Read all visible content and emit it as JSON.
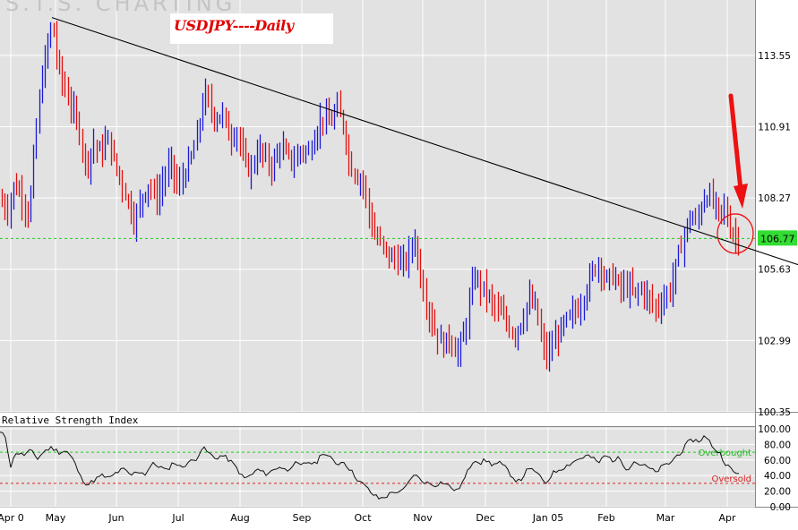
{
  "watermark": "S.T.S. CHARTING",
  "chart_data": [
    {
      "type": "ohlc",
      "title": "USDJPY----Daily",
      "x_tick_labels": [
        "Apr 0",
        "May",
        "Jun",
        "Jul",
        "Aug",
        "Sep",
        "Oct",
        "Nov",
        "Dec",
        "Jan 05",
        "Feb",
        "Mar",
        "Apr"
      ],
      "y_ticks": [
        100.35,
        102.99,
        105.63,
        108.27,
        110.91,
        113.55
      ],
      "ylim": [
        100.35,
        115.6
      ],
      "current_price_label": "106.77",
      "support_line": 106.77,
      "trendline": {
        "from": {
          "x": 58,
          "y": 114.95
        },
        "to": {
          "x": 891,
          "y": 105.8
        }
      },
      "annotation": "red arrow and circle at the trendline break near 106.8 in April",
      "close_waypoints": [
        [
          0,
          108.2
        ],
        [
          8,
          107.8
        ],
        [
          16,
          108.8
        ],
        [
          24,
          108.3
        ],
        [
          32,
          107.6
        ],
        [
          40,
          110.8
        ],
        [
          46,
          112.6
        ],
        [
          52,
          113.8
        ],
        [
          58,
          114.8
        ],
        [
          64,
          113.2
        ],
        [
          72,
          112.3
        ],
        [
          80,
          111.6
        ],
        [
          88,
          110.8
        ],
        [
          96,
          109.4
        ],
        [
          104,
          110.3
        ],
        [
          112,
          109.9
        ],
        [
          120,
          110.5
        ],
        [
          128,
          109.5
        ],
        [
          136,
          108.8
        ],
        [
          144,
          108.0
        ],
        [
          150,
          107.4
        ],
        [
          158,
          108.3
        ],
        [
          166,
          108.8
        ],
        [
          174,
          108.2
        ],
        [
          182,
          108.9
        ],
        [
          190,
          109.6
        ],
        [
          198,
          108.6
        ],
        [
          206,
          109.2
        ],
        [
          214,
          109.8
        ],
        [
          222,
          110.9
        ],
        [
          228,
          112.2
        ],
        [
          234,
          111.6
        ],
        [
          240,
          111.2
        ],
        [
          248,
          111.4
        ],
        [
          256,
          110.5
        ],
        [
          264,
          110.8
        ],
        [
          272,
          109.6
        ],
        [
          280,
          109.3
        ],
        [
          288,
          110.1
        ],
        [
          296,
          109.7
        ],
        [
          304,
          109.4
        ],
        [
          312,
          110.2
        ],
        [
          320,
          109.8
        ],
        [
          328,
          109.6
        ],
        [
          336,
          110.1
        ],
        [
          344,
          109.9
        ],
        [
          352,
          110.7
        ],
        [
          360,
          111.3
        ],
        [
          368,
          111.0
        ],
        [
          376,
          111.6
        ],
        [
          384,
          110.9
        ],
        [
          390,
          109.5
        ],
        [
          398,
          109.1
        ],
        [
          406,
          108.8
        ],
        [
          412,
          107.6
        ],
        [
          418,
          106.9
        ],
        [
          426,
          106.5
        ],
        [
          434,
          106.1
        ],
        [
          442,
          106.0
        ],
        [
          450,
          105.8
        ],
        [
          458,
          106.3
        ],
        [
          462,
          106.9
        ],
        [
          466,
          106.0
        ],
        [
          472,
          104.9
        ],
        [
          478,
          104.1
        ],
        [
          486,
          103.3
        ],
        [
          494,
          102.8
        ],
        [
          502,
          103.1
        ],
        [
          510,
          102.5
        ],
        [
          518,
          103.2
        ],
        [
          524,
          104.5
        ],
        [
          530,
          105.4
        ],
        [
          536,
          105.0
        ],
        [
          542,
          104.8
        ],
        [
          550,
          104.3
        ],
        [
          558,
          104.0
        ],
        [
          566,
          103.6
        ],
        [
          574,
          103.2
        ],
        [
          582,
          103.7
        ],
        [
          590,
          104.5
        ],
        [
          598,
          104.2
        ],
        [
          604,
          103.0
        ],
        [
          610,
          102.4
        ],
        [
          616,
          102.8
        ],
        [
          624,
          103.3
        ],
        [
          632,
          103.7
        ],
        [
          640,
          104.0
        ],
        [
          648,
          104.3
        ],
        [
          656,
          105.1
        ],
        [
          662,
          105.6
        ],
        [
          668,
          105.9
        ],
        [
          676,
          105.2
        ],
        [
          684,
          105.4
        ],
        [
          692,
          104.9
        ],
        [
          700,
          105.0
        ],
        [
          708,
          104.7
        ],
        [
          716,
          104.9
        ],
        [
          724,
          104.5
        ],
        [
          732,
          104.2
        ],
        [
          740,
          104.5
        ],
        [
          748,
          104.9
        ],
        [
          754,
          105.7
        ],
        [
          760,
          106.5
        ],
        [
          766,
          107.2
        ],
        [
          772,
          107.6
        ],
        [
          778,
          107.3
        ],
        [
          784,
          108.2
        ],
        [
          790,
          108.4
        ],
        [
          796,
          108.1
        ],
        [
          802,
          107.7
        ],
        [
          808,
          107.9
        ],
        [
          814,
          107.2
        ],
        [
          820,
          106.9
        ],
        [
          826,
          106.7
        ]
      ]
    },
    {
      "type": "line",
      "title": "Relative Strength Index",
      "y_ticks": [
        0.0,
        20.0,
        40.0,
        60.0,
        80.0,
        100.0
      ],
      "ylim": [
        0,
        100
      ],
      "overbought": {
        "level": 70,
        "label": "Overbought"
      },
      "oversold": {
        "level": 30,
        "label": "Oversold"
      },
      "values_waypoints": [
        [
          0,
          95
        ],
        [
          6,
          90
        ],
        [
          12,
          52
        ],
        [
          18,
          70
        ],
        [
          26,
          66
        ],
        [
          34,
          72
        ],
        [
          42,
          62
        ],
        [
          50,
          72
        ],
        [
          58,
          76
        ],
        [
          66,
          70
        ],
        [
          74,
          72
        ],
        [
          82,
          60
        ],
        [
          90,
          38
        ],
        [
          98,
          28
        ],
        [
          106,
          35
        ],
        [
          114,
          40
        ],
        [
          122,
          36
        ],
        [
          130,
          44
        ],
        [
          138,
          48
        ],
        [
          146,
          40
        ],
        [
          154,
          46
        ],
        [
          162,
          42
        ],
        [
          170,
          55
        ],
        [
          178,
          52
        ],
        [
          186,
          46
        ],
        [
          194,
          58
        ],
        [
          202,
          50
        ],
        [
          210,
          57
        ],
        [
          218,
          60
        ],
        [
          226,
          76
        ],
        [
          232,
          70
        ],
        [
          240,
          62
        ],
        [
          248,
          66
        ],
        [
          256,
          60
        ],
        [
          264,
          50
        ],
        [
          272,
          36
        ],
        [
          280,
          40
        ],
        [
          288,
          48
        ],
        [
          296,
          42
        ],
        [
          304,
          46
        ],
        [
          312,
          52
        ],
        [
          320,
          46
        ],
        [
          328,
          56
        ],
        [
          336,
          52
        ],
        [
          344,
          58
        ],
        [
          352,
          54
        ],
        [
          360,
          70
        ],
        [
          368,
          63
        ],
        [
          376,
          55
        ],
        [
          384,
          58
        ],
        [
          392,
          46
        ],
        [
          400,
          34
        ],
        [
          408,
          26
        ],
        [
          416,
          16
        ],
        [
          424,
          10
        ],
        [
          432,
          14
        ],
        [
          440,
          20
        ],
        [
          448,
          18
        ],
        [
          456,
          30
        ],
        [
          462,
          42
        ],
        [
          470,
          34
        ],
        [
          478,
          30
        ],
        [
          486,
          28
        ],
        [
          494,
          32
        ],
        [
          502,
          26
        ],
        [
          510,
          20
        ],
        [
          518,
          34
        ],
        [
          524,
          50
        ],
        [
          530,
          62
        ],
        [
          536,
          56
        ],
        [
          542,
          60
        ],
        [
          550,
          54
        ],
        [
          558,
          56
        ],
        [
          566,
          48
        ],
        [
          574,
          36
        ],
        [
          580,
          32
        ],
        [
          588,
          46
        ],
        [
          596,
          48
        ],
        [
          604,
          36
        ],
        [
          610,
          30
        ],
        [
          616,
          42
        ],
        [
          624,
          48
        ],
        [
          632,
          52
        ],
        [
          640,
          58
        ],
        [
          648,
          62
        ],
        [
          656,
          66
        ],
        [
          662,
          62
        ],
        [
          668,
          56
        ],
        [
          676,
          66
        ],
        [
          684,
          60
        ],
        [
          692,
          62
        ],
        [
          700,
          48
        ],
        [
          708,
          58
        ],
        [
          716,
          54
        ],
        [
          724,
          50
        ],
        [
          732,
          44
        ],
        [
          740,
          52
        ],
        [
          748,
          56
        ],
        [
          756,
          66
        ],
        [
          762,
          72
        ],
        [
          768,
          82
        ],
        [
          774,
          86
        ],
        [
          780,
          84
        ],
        [
          786,
          90
        ],
        [
          792,
          84
        ],
        [
          798,
          74
        ],
        [
          804,
          68
        ],
        [
          810,
          56
        ],
        [
          816,
          48
        ],
        [
          822,
          42
        ],
        [
          826,
          44
        ]
      ]
    }
  ]
}
